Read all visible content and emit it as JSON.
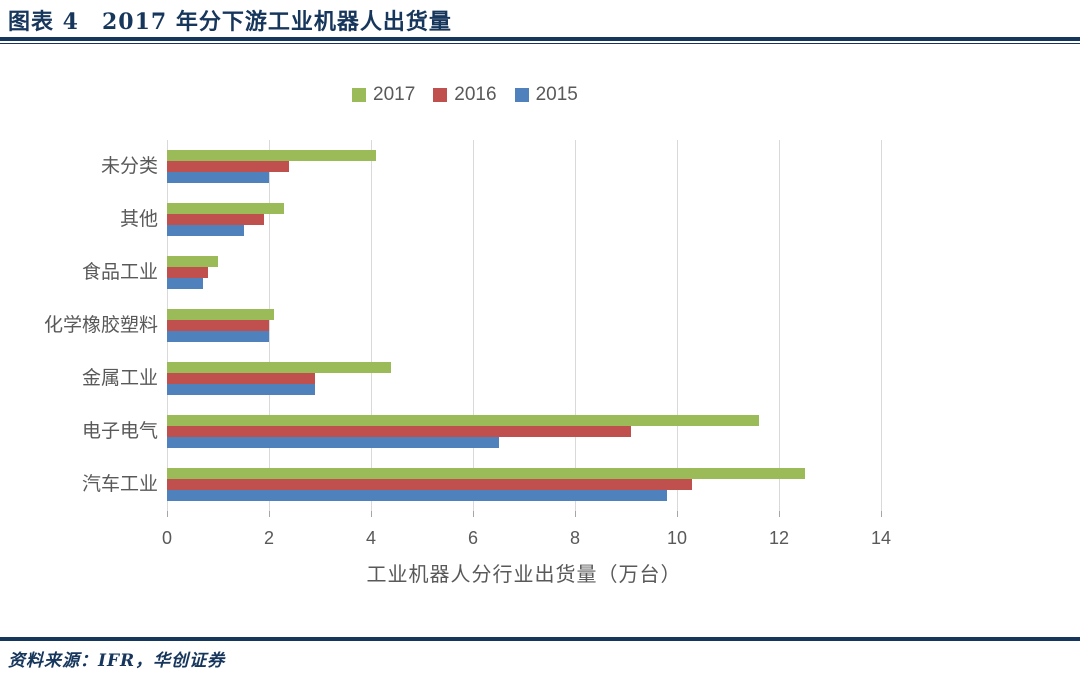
{
  "header": {
    "title": "图表 4　2017 年分下游工业机器人出货量"
  },
  "footer": {
    "source": "资料来源：IFR，华创证券"
  },
  "colors": {
    "accent_navy": "#16365C",
    "grid": "#D9D9D9",
    "axis_text": "#595959",
    "series_2017": "#9BBB59",
    "series_2016": "#C0504D",
    "series_2015": "#4F81BD"
  },
  "chart_data": {
    "type": "bar",
    "orientation": "horizontal",
    "xlabel": "工业机器人分行业出货量（万台）",
    "categories_top_to_bottom": [
      "未分类",
      "其他",
      "食品工业",
      "化学橡胶塑料",
      "金属工业",
      "电子电气",
      "汽车工业"
    ],
    "series": [
      {
        "name": "2017",
        "color": "#9BBB59",
        "values": [
          4.1,
          2.3,
          1.0,
          2.1,
          4.4,
          11.6,
          12.5
        ]
      },
      {
        "name": "2016",
        "color": "#C0504D",
        "values": [
          2.4,
          1.9,
          0.8,
          2.0,
          2.9,
          9.1,
          10.3
        ]
      },
      {
        "name": "2015",
        "color": "#4F81BD",
        "values": [
          2.0,
          1.5,
          0.7,
          2.0,
          2.9,
          6.5,
          9.8
        ]
      }
    ],
    "xlim": [
      0,
      14
    ],
    "xticks": [
      0,
      2,
      4,
      6,
      8,
      10,
      12,
      14
    ],
    "grid": true,
    "legend_position": "top-center",
    "unit": "万台"
  }
}
